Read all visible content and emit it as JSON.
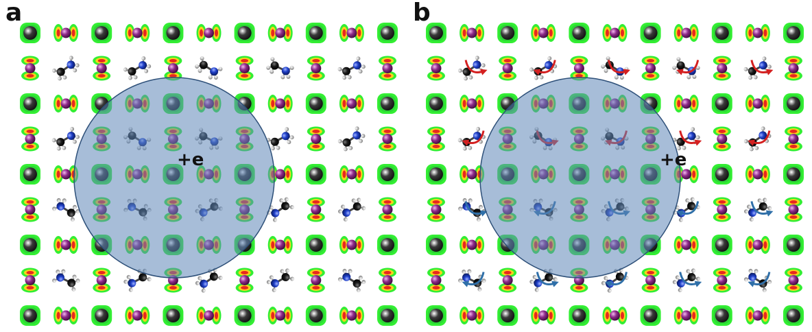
{
  "panels": [
    {
      "id": "a",
      "label": "a",
      "charge_label": "+e",
      "show_arrows": false
    },
    {
      "id": "b",
      "label": "b",
      "charge_label": "+e",
      "show_arrows": true
    }
  ],
  "colors": {
    "lead_atom": "#3a3a3a",
    "iodide_atom": "#8e2b8a",
    "carbon_atom": "#1a1a1a",
    "nitrogen_atom": "#1f3fc8",
    "hydrogen_atom": "#c8c8c8",
    "density_outer": "#33ee33",
    "density_mid": "#ffd21a",
    "density_inner": "#e8281e",
    "charge_region": "#5f87b8",
    "arrow_red": "#d42020",
    "arrow_blue": "#2f6fa8"
  }
}
